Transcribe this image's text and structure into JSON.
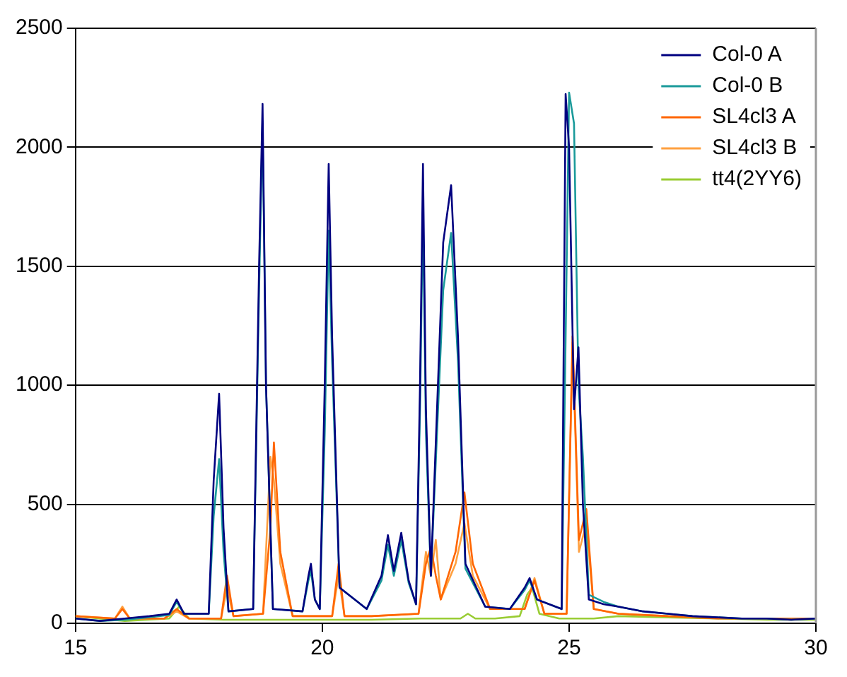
{
  "chart_data": {
    "type": "line",
    "xlim": [
      15,
      30
    ],
    "xticks": [
      15,
      20,
      25,
      30
    ],
    "ylim": [
      0,
      2500
    ],
    "yticks": [
      0,
      500,
      1000,
      1500,
      2000,
      2500
    ],
    "grid": "y",
    "legend": "top right",
    "marker": "none",
    "series": [
      {
        "name": "Col-0 A",
        "color": "#000080",
        "x": [
          15,
          15.5,
          16,
          16.5,
          16.9,
          17.05,
          17.2,
          17.7,
          17.8,
          17.91,
          18.0,
          18.1,
          18.6,
          18.72,
          18.79,
          18.86,
          19.0,
          19.6,
          19.72,
          19.77,
          19.85,
          19.95,
          20.05,
          20.13,
          20.2,
          20.35,
          20.9,
          21.2,
          21.33,
          21.45,
          21.6,
          21.75,
          21.9,
          21.98,
          22.04,
          22.1,
          22.2,
          22.45,
          22.61,
          22.75,
          22.9,
          23.3,
          23.8,
          24.1,
          24.2,
          24.35,
          24.85,
          24.93,
          25.0,
          25.1,
          25.19,
          25.28,
          25.4,
          25.7,
          26,
          26.5,
          27,
          27.5,
          28,
          28.5,
          29,
          29.5,
          30
        ],
        "values": [
          20,
          10,
          20,
          30,
          40,
          100,
          40,
          40,
          600,
          965,
          400,
          50,
          60,
          1500,
          2182,
          1000,
          60,
          50,
          200,
          250,
          100,
          60,
          1000,
          1930,
          1200,
          150,
          60,
          200,
          370,
          220,
          380,
          180,
          80,
          1000,
          1930,
          900,
          200,
          1600,
          1841,
          1200,
          250,
          70,
          60,
          150,
          190,
          100,
          60,
          2224,
          2000,
          900,
          1159,
          500,
          100,
          80,
          70,
          50,
          40,
          30,
          25,
          20,
          20,
          15,
          20
        ]
      },
      {
        "name": "Col-0 B",
        "color": "#1a9a9a",
        "x": [
          15,
          15.5,
          16,
          16.5,
          16.9,
          17.05,
          17.2,
          17.7,
          17.8,
          17.91,
          18.0,
          18.1,
          18.6,
          18.72,
          18.79,
          18.86,
          19.0,
          19.6,
          19.72,
          19.77,
          19.85,
          19.95,
          20.05,
          20.13,
          20.2,
          20.35,
          20.9,
          21.2,
          21.33,
          21.45,
          21.6,
          21.75,
          21.9,
          21.98,
          22.04,
          22.1,
          22.2,
          22.45,
          22.61,
          22.75,
          22.9,
          23.3,
          23.8,
          24.1,
          24.2,
          24.35,
          24.85,
          24.93,
          25.0,
          25.1,
          25.19,
          25.28,
          25.4,
          25.7,
          26,
          26.5,
          27,
          27.5,
          28,
          28.5,
          29,
          29.5,
          30
        ],
        "values": [
          20,
          10,
          15,
          25,
          35,
          90,
          40,
          40,
          450,
          690,
          300,
          50,
          60,
          1400,
          2110,
          1000,
          60,
          50,
          180,
          220,
          100,
          60,
          800,
          1650,
          1100,
          150,
          60,
          180,
          330,
          200,
          350,
          170,
          80,
          900,
          1740,
          800,
          200,
          1400,
          1640,
          1100,
          230,
          70,
          60,
          140,
          180,
          100,
          60,
          1200,
          2230,
          2100,
          1000,
          700,
          120,
          90,
          70,
          50,
          40,
          30,
          25,
          20,
          20,
          15,
          20
        ]
      },
      {
        "name": "SL4cl3 A",
        "color": "#ff6600",
        "x": [
          15,
          15.8,
          15.95,
          16.1,
          16.8,
          17.05,
          17.3,
          17.95,
          18.07,
          18.2,
          18.8,
          18.95,
          19.02,
          19.15,
          19.4,
          20.2,
          20.33,
          20.45,
          21,
          21.95,
          22.1,
          22.2,
          22.3,
          22.4,
          22.7,
          22.88,
          23.05,
          23.4,
          24.1,
          24.3,
          24.5,
          24.95,
          25.07,
          25.2,
          25.35,
          25.5,
          26,
          27,
          28,
          29,
          30
        ],
        "values": [
          30,
          20,
          60,
          20,
          20,
          60,
          20,
          20,
          200,
          30,
          40,
          400,
          760,
          300,
          30,
          30,
          250,
          30,
          30,
          40,
          250,
          320,
          200,
          100,
          300,
          550,
          250,
          60,
          60,
          180,
          40,
          40,
          1206,
          350,
          480,
          60,
          40,
          30,
          20,
          20,
          20
        ]
      },
      {
        "name": "SL4cl3 B",
        "color": "#ffa040",
        "x": [
          15,
          15.8,
          15.95,
          16.1,
          16.8,
          17.05,
          17.3,
          17.95,
          18.07,
          18.2,
          18.8,
          18.95,
          19.02,
          19.15,
          19.4,
          20.2,
          20.33,
          20.45,
          21,
          21.95,
          22.1,
          22.2,
          22.3,
          22.4,
          22.7,
          22.88,
          23.05,
          23.4,
          24.1,
          24.3,
          24.5,
          24.95,
          25.07,
          25.2,
          25.35,
          25.5,
          26,
          27
        ],
        "values": [
          30,
          20,
          70,
          20,
          20,
          50,
          20,
          20,
          150,
          30,
          40,
          700,
          600,
          250,
          30,
          30,
          200,
          30,
          30,
          40,
          300,
          200,
          350,
          100,
          250,
          420,
          200,
          60,
          60,
          190,
          40,
          40,
          1180,
          300,
          420,
          60,
          40,
          30
        ]
      },
      {
        "name": "tt4(2YY6)",
        "color": "#99cc33",
        "x": [
          15,
          16,
          16.9,
          17.1,
          17.3,
          18,
          19,
          20,
          21,
          22,
          22.8,
          22.95,
          23.1,
          23.5,
          24,
          24.15,
          24.25,
          24.4,
          24.8,
          25.5,
          26,
          27,
          28,
          29,
          30
        ],
        "values": [
          30,
          10,
          20,
          70,
          20,
          15,
          15,
          15,
          15,
          20,
          20,
          40,
          20,
          20,
          30,
          120,
          150,
          40,
          20,
          20,
          30,
          25,
          20,
          15,
          15
        ]
      }
    ]
  }
}
